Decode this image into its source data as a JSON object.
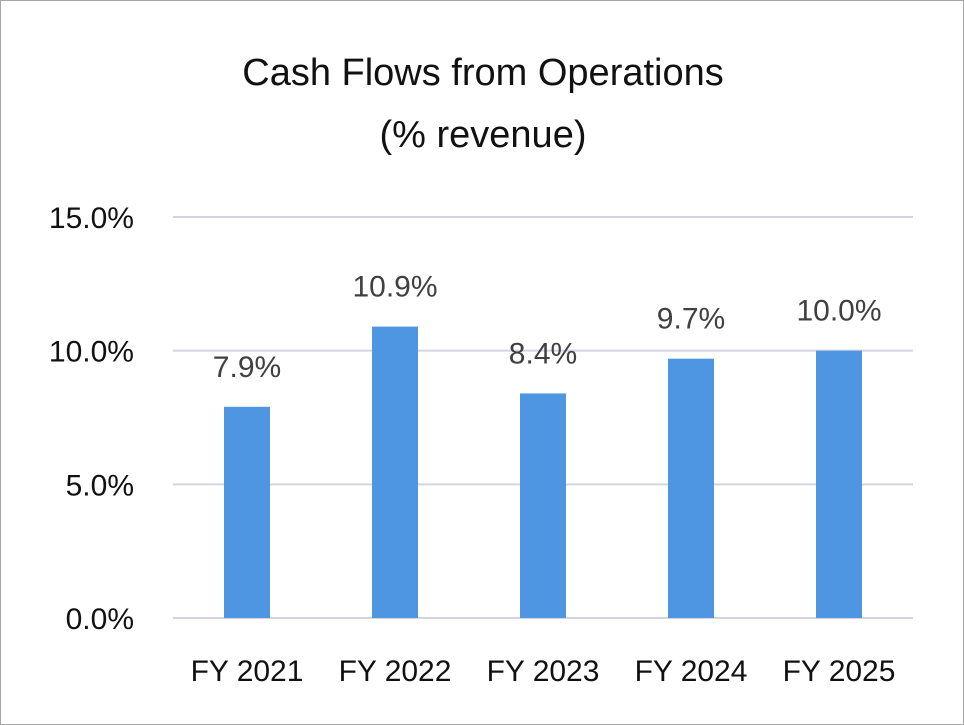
{
  "chart_data": {
    "type": "bar",
    "title": "Cash Flows from Operations",
    "subtitle": "(% revenue)",
    "categories": [
      "FY 2021",
      "FY 2022",
      "FY 2023",
      "FY 2024",
      "FY 2025"
    ],
    "values": [
      7.9,
      10.9,
      8.4,
      9.7,
      10.0
    ],
    "data_labels": [
      "7.9%",
      "10.9%",
      "8.4%",
      "9.7%",
      "10.0%"
    ],
    "xlabel": "",
    "ylabel": "",
    "ylim": [
      0,
      15
    ],
    "yticks": [
      0,
      5,
      10,
      15
    ],
    "ytick_labels": [
      "0.0%",
      "5.0%",
      "10.0%",
      "15.0%"
    ],
    "grid": true,
    "legend": "none",
    "bar_color": "#4e96e2",
    "grid_color": "#d4d4e0",
    "text_color": "#404040"
  }
}
